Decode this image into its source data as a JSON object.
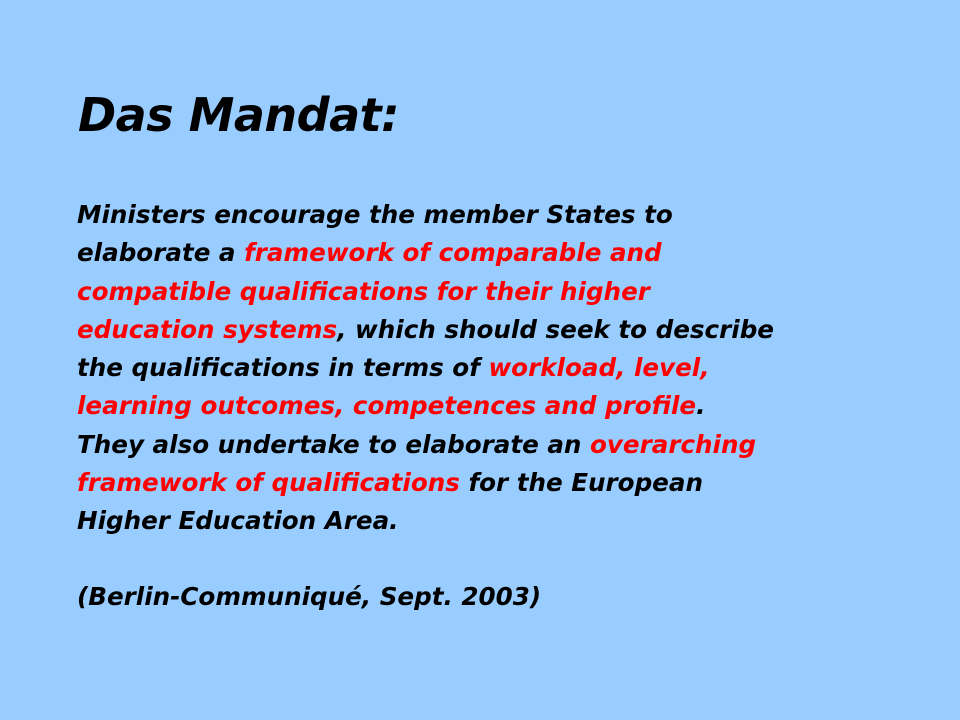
{
  "slide": {
    "title": "Das Mandat:",
    "lines": [
      [
        {
          "t": "Ministers encourage the member States to",
          "hl": false
        }
      ],
      [
        {
          "t": "elaborate a ",
          "hl": false
        },
        {
          "t": "framework of comparable and",
          "hl": true
        }
      ],
      [
        {
          "t": "compatible qualifications for their higher",
          "hl": true
        }
      ],
      [
        {
          "t": "education systems",
          "hl": true
        },
        {
          "t": ", which should seek to describe",
          "hl": false
        }
      ],
      [
        {
          "t": "the qualifications in terms of ",
          "hl": false
        },
        {
          "t": "workload, level,",
          "hl": true
        }
      ],
      [
        {
          "t": "learning outcomes, competences and profile",
          "hl": true
        },
        {
          "t": ".",
          "hl": false
        }
      ],
      [
        {
          "t": "They also undertake to elaborate an ",
          "hl": false
        },
        {
          "t": "overarching",
          "hl": true
        }
      ],
      [
        {
          "t": "framework of qualifications",
          "hl": true
        },
        {
          "t": " for the European",
          "hl": false
        }
      ],
      [
        {
          "t": "Higher Education Area.",
          "hl": false
        }
      ]
    ],
    "citation": "(Berlin-Communiqué, Sept. 2003)",
    "colors": {
      "background": "#99ccff",
      "text": "#000000",
      "highlight": "#ff0000"
    }
  }
}
